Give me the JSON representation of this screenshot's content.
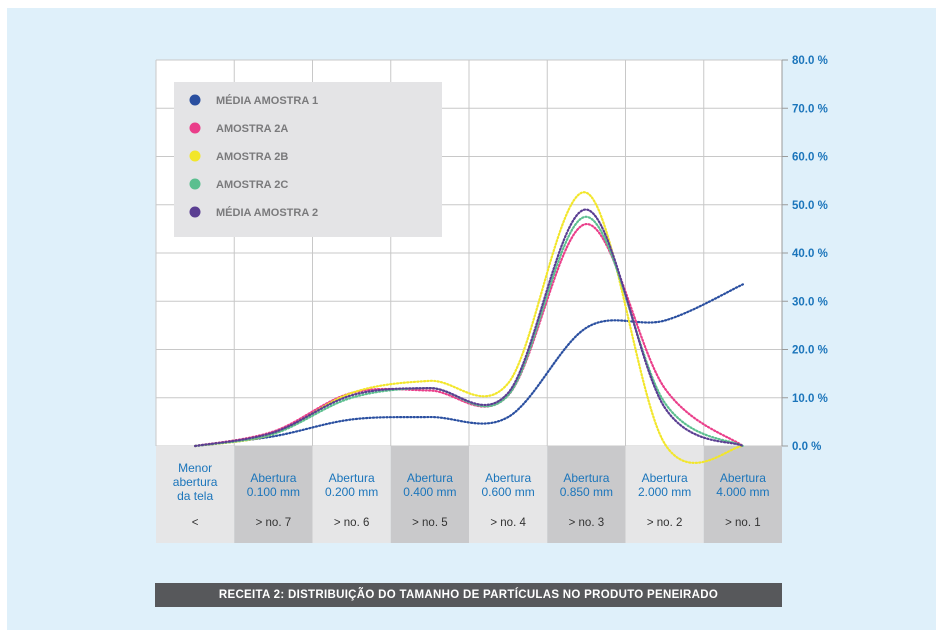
{
  "caption": "RECEITA 2: DISTRIBUIÇÃO DO TAMANHO DE PARTÍCULAS NO PRODUTO PENEIRADO",
  "colors": {
    "background": "#dff0fa",
    "axis_text": "#1b75bb",
    "caption_bg": "#57585b"
  },
  "chart_data": {
    "type": "line",
    "title": "RECEITA 2: DISTRIBUIÇÃO DO TAMANHO DE PARTÍCULAS NO PRODUTO PENEIRADO",
    "categories": [
      {
        "label": "Menor abertura da tela",
        "sieve": "<"
      },
      {
        "label": "Abertura 0.100 mm",
        "sieve": "> no. 7"
      },
      {
        "label": "Abertura 0.200 mm",
        "sieve": "> no. 6"
      },
      {
        "label": "Abertura 0.400 mm",
        "sieve": "> no. 5"
      },
      {
        "label": "Abertura 0.600 mm",
        "sieve": "> no. 4"
      },
      {
        "label": "Abertura 0.850 mm",
        "sieve": "> no. 3"
      },
      {
        "label": "Abertura 2.000 mm",
        "sieve": "> no. 2"
      },
      {
        "label": "Abertura 4.000 mm",
        "sieve": "> no. 1"
      }
    ],
    "y_ticks": [
      "0.0 %",
      "10.0 %",
      "20.0 %",
      "30.0 %",
      "40.0 %",
      "50.0 %",
      "60.0 %",
      "70.0 %",
      "80.0 %"
    ],
    "ylim": [
      0,
      80
    ],
    "y_axis_position": "right",
    "grid": true,
    "legend_position": "top-left",
    "line_style": "dotted",
    "series": [
      {
        "name": "MÉDIA AMOSTRA 1",
        "color": "#2a4fa0",
        "values": [
          0,
          2,
          5.5,
          6,
          6,
          24.5,
          26,
          33.5
        ]
      },
      {
        "name": "AMOSTRA 2A",
        "color": "#ea3e8a",
        "values": [
          0,
          3,
          11,
          11.5,
          10.5,
          46,
          12,
          0
        ]
      },
      {
        "name": "AMOSTRA 2B",
        "color": "#f2e62a",
        "values": [
          0,
          2.5,
          11,
          13.5,
          13,
          52.5,
          0.5,
          0
        ]
      },
      {
        "name": "AMOSTRA 2C",
        "color": "#5bbf8f",
        "values": [
          0,
          2.5,
          10,
          12,
          10.5,
          47.5,
          9,
          0
        ]
      },
      {
        "name": "MÉDIA AMOSTRA 2",
        "color": "#5a3e92",
        "values": [
          0,
          2.8,
          10.5,
          12,
          11,
          49,
          8,
          0
        ]
      }
    ]
  }
}
